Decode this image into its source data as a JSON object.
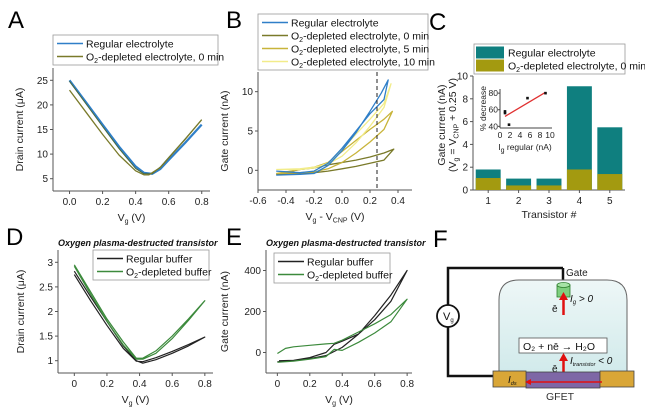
{
  "panels": {
    "A": "A",
    "B": "B",
    "C": "C",
    "D": "D",
    "E": "E",
    "F": "F"
  },
  "colors": {
    "regular_blue": "#2f7fc8",
    "o2_0min": "#7a7a2a",
    "o2_5min": "#c8b43a",
    "o2_10min": "#f2ec8a",
    "teal": "#0f7f7f",
    "olive": "#a39a10",
    "buffer_black": "#222222",
    "buffer_green": "#3c8a3c",
    "fit_red": "#e03030"
  },
  "chart_data": [
    {
      "id": "A",
      "type": "line",
      "title": "",
      "xlabel": "V_g (V)",
      "ylabel": "Drain current (μA)",
      "xlim": [
        -0.1,
        0.85
      ],
      "ylim": [
        2.5,
        27.5
      ],
      "xticks": [
        "0.0",
        "0.2",
        "0.4",
        "0.6",
        "0.8"
      ],
      "xtick_values": [
        0.0,
        0.2,
        0.4,
        0.6,
        0.8
      ],
      "yticks": [
        "5",
        "10",
        "15",
        "20",
        "25"
      ],
      "ytick_values": [
        5,
        10,
        15,
        20,
        25
      ],
      "legend": [
        "Regular electrolyte",
        "O₂-depleted electrolyte, 0 min"
      ],
      "legend_position": "top",
      "series": [
        {
          "name": "Regular electrolyte",
          "color": "#2f7fc8",
          "x": [
            0.0,
            0.1,
            0.2,
            0.3,
            0.4,
            0.45,
            0.5,
            0.55,
            0.6,
            0.7,
            0.8
          ],
          "y": [
            25.0,
            20.5,
            16.0,
            11.5,
            7.5,
            6.2,
            6.0,
            7.0,
            8.8,
            12.3,
            16.0
          ]
        },
        {
          "name": "O₂-depleted electrolyte, 0 min",
          "color": "#7a7a2a",
          "x": [
            0.0,
            0.1,
            0.2,
            0.3,
            0.4,
            0.45,
            0.48,
            0.55,
            0.6,
            0.7,
            0.8
          ],
          "y": [
            23.0,
            18.5,
            14.0,
            9.8,
            6.6,
            5.8,
            5.8,
            7.3,
            9.2,
            13.0,
            17.0
          ]
        },
        {
          "name": "Regular electrolyte (forward)",
          "color": "#4a6a40",
          "x": [
            0.0,
            0.1,
            0.2,
            0.3,
            0.4,
            0.45,
            0.5,
            0.55,
            0.6,
            0.7,
            0.8
          ],
          "y": [
            24.8,
            20.2,
            15.6,
            11.1,
            7.1,
            6.0,
            6.0,
            7.4,
            9.3,
            13.1,
            17.0
          ]
        }
      ]
    },
    {
      "id": "B",
      "type": "line",
      "title": "",
      "xlabel": "V_g - V_CNP (V)",
      "ylabel": "Gate current (nA)",
      "xlim": [
        -0.6,
        0.5
      ],
      "ylim": [
        -2.5,
        12.5
      ],
      "xticks": [
        "-0.6",
        "-0.4",
        "-0.2",
        "0.0",
        "0.2",
        "0.4"
      ],
      "xtick_values": [
        -0.6,
        -0.4,
        -0.2,
        0.0,
        0.2,
        0.4
      ],
      "yticks": [
        "0",
        "5",
        "10"
      ],
      "ytick_values": [
        0,
        5,
        10
      ],
      "vline": {
        "x": 0.25,
        "style": "dashed"
      },
      "legend": [
        "Regular electrolyte",
        "O₂-depleted electrolyte, 0 min",
        "O₂-depleted electrolyte, 5 min",
        "O₂-depleted electrolyte, 10 min"
      ],
      "legend_position": "top",
      "series": [
        {
          "name": "Regular electrolyte",
          "color": "#2f7fc8",
          "x": [
            -0.47,
            -0.3,
            -0.2,
            -0.1,
            0.0,
            0.1,
            0.2,
            0.28,
            0.33,
            0.3,
            0.2,
            0.1,
            0.0,
            -0.1,
            -0.2,
            -0.3,
            -0.47
          ],
          "y": [
            -0.6,
            -0.5,
            -0.4,
            0.6,
            2.5,
            4.8,
            7.5,
            9.8,
            11.5,
            9.0,
            7.2,
            5.0,
            2.8,
            0.9,
            -0.1,
            -0.3,
            -0.1
          ]
        },
        {
          "name": "O₂-depleted electrolyte, 0 min",
          "color": "#7a7a2a",
          "x": [
            -0.47,
            -0.3,
            -0.2,
            -0.1,
            0.0,
            0.1,
            0.2,
            0.3,
            0.37,
            0.3,
            0.2,
            0.1,
            0.0,
            -0.1,
            -0.2,
            -0.3,
            -0.47
          ],
          "y": [
            -0.5,
            -0.4,
            -0.3,
            -0.1,
            0.2,
            0.5,
            0.9,
            1.3,
            2.7,
            2.2,
            1.7,
            1.3,
            1.0,
            0.7,
            0.3,
            0.1,
            -0.5
          ]
        },
        {
          "name": "O₂-depleted electrolyte, 5 min",
          "color": "#c8b43a",
          "x": [
            -0.47,
            -0.3,
            -0.2,
            -0.1,
            0.0,
            0.1,
            0.2,
            0.3,
            0.36,
            0.3,
            0.2,
            0.1,
            0.0,
            -0.1,
            -0.2,
            -0.3,
            -0.47
          ],
          "y": [
            -0.4,
            -0.3,
            -0.2,
            0.2,
            1.0,
            2.2,
            3.6,
            5.2,
            7.5,
            6.5,
            5.2,
            3.8,
            2.4,
            1.0,
            0.4,
            0.1,
            -0.4
          ]
        },
        {
          "name": "O₂-depleted electrolyte, 10 min",
          "color": "#f2ec8a",
          "x": [
            -0.47,
            -0.3,
            -0.2,
            -0.1,
            0.0,
            0.1,
            0.2,
            0.3,
            0.35,
            0.3,
            0.2,
            0.1,
            0.0,
            -0.1,
            -0.2,
            -0.3,
            -0.47
          ],
          "y": [
            0.1,
            0.2,
            0.4,
            0.8,
            1.8,
            3.5,
            5.6,
            8.0,
            11.0,
            8.5,
            6.5,
            4.6,
            2.6,
            0.9,
            0.3,
            0.1,
            0.1
          ]
        }
      ]
    },
    {
      "id": "C",
      "type": "bar",
      "title": "",
      "xlabel": "Transistor #",
      "ylabel": "Gate current (nA)",
      "ylabel2": "(V_g = V_CNP + 0.25 V)",
      "categories": [
        "1",
        "2",
        "3",
        "4",
        "5"
      ],
      "ylim": [
        0,
        10
      ],
      "yticks": [
        "0",
        "2",
        "4",
        "6",
        "8",
        "10"
      ],
      "ytick_values": [
        0,
        2,
        4,
        6,
        8,
        10
      ],
      "legend": [
        "Regular electrolyte",
        "O₂-depleted electrolyte, 0 min"
      ],
      "legend_position": "top",
      "series": [
        {
          "name": "Regular electrolyte",
          "color": "#0f7f7f",
          "values": [
            1.8,
            1.0,
            1.0,
            9.1,
            5.5
          ]
        },
        {
          "name": "O₂-depleted electrolyte, 0 min",
          "color": "#a39a10",
          "values": [
            1.05,
            0.4,
            0.4,
            1.8,
            1.4
          ]
        }
      ],
      "inset": {
        "type": "scatter",
        "xlabel": "I_g regular (nA)",
        "ylabel": "% decrease",
        "xlim": [
          0,
          10
        ],
        "ylim": [
          38,
          85
        ],
        "xticks": [
          "0",
          "2",
          "4",
          "6",
          "8",
          "10"
        ],
        "xtick_values": [
          0,
          2,
          4,
          6,
          8,
          10
        ],
        "yticks": [
          "40",
          "60",
          "80"
        ],
        "ytick_values": [
          40,
          60,
          80
        ],
        "points": {
          "x": [
            1.0,
            1.0,
            1.8,
            5.5,
            9.1
          ],
          "y": [
            56,
            58,
            42,
            74,
            80
          ]
        },
        "fit": {
          "color": "#e03030",
          "x": [
            1.0,
            9.1
          ],
          "y": [
            52,
            81
          ]
        }
      }
    },
    {
      "id": "D",
      "type": "line",
      "title": "Oxygen plasma-destructed transistor",
      "xlabel": "V_g (V)",
      "ylabel": "Drain current (μA)",
      "xlim": [
        -0.1,
        0.85
      ],
      "ylim": [
        0.75,
        3.25
      ],
      "xticks": [
        "0",
        "0.2",
        "0.4",
        "0.6",
        "0.8"
      ],
      "xtick_values": [
        0,
        0.2,
        0.4,
        0.6,
        0.8
      ],
      "yticks": [
        "1",
        "1.5",
        "2",
        "2.5",
        "3"
      ],
      "ytick_values": [
        1,
        1.5,
        2,
        2.5,
        3
      ],
      "legend": [
        "Regular buffer",
        "O₂-depleted buffer"
      ],
      "legend_position": "top-right",
      "series": [
        {
          "name": "Regular buffer",
          "color": "#222222",
          "x": [
            0.0,
            0.1,
            0.2,
            0.3,
            0.38,
            0.42,
            0.5,
            0.6,
            0.7,
            0.8,
            0.7,
            0.6,
            0.5,
            0.42,
            0.38,
            0.3,
            0.2,
            0.1,
            0.0
          ],
          "y": [
            2.82,
            2.3,
            1.8,
            1.3,
            1.0,
            0.95,
            1.02,
            1.15,
            1.3,
            1.48,
            1.33,
            1.19,
            1.06,
            0.98,
            0.99,
            1.25,
            1.72,
            2.22,
            2.75
          ]
        },
        {
          "name": "O₂-depleted buffer",
          "color": "#3c8a3c",
          "x": [
            0.0,
            0.1,
            0.2,
            0.3,
            0.38,
            0.42,
            0.5,
            0.6,
            0.7,
            0.8,
            0.7,
            0.6,
            0.5,
            0.42,
            0.38,
            0.3,
            0.2,
            0.1,
            0.0
          ],
          "y": [
            2.95,
            2.4,
            1.85,
            1.38,
            1.05,
            1.05,
            1.2,
            1.5,
            1.85,
            2.22,
            1.82,
            1.45,
            1.15,
            1.03,
            1.03,
            1.32,
            1.8,
            2.35,
            2.92
          ]
        }
      ]
    },
    {
      "id": "E",
      "type": "line",
      "title": "Oxygen plasma-destructed transistor",
      "xlabel": "V_g (V)",
      "ylabel": "Gate current (nA)",
      "xlim": [
        -0.07,
        0.83
      ],
      "ylim": [
        -100,
        500
      ],
      "xticks": [
        "0",
        "0.2",
        "0.4",
        "0.6",
        "0.8"
      ],
      "xtick_values": [
        0,
        0.2,
        0.4,
        0.6,
        0.8
      ],
      "yticks": [
        "0",
        "200",
        "400"
      ],
      "ytick_values": [
        0,
        200,
        400
      ],
      "legend": [
        "Regular buffer",
        "O₂-depleted buffer"
      ],
      "legend_position": "top-left",
      "series": [
        {
          "name": "Regular buffer",
          "color": "#222222",
          "x": [
            0.0,
            0.1,
            0.2,
            0.3,
            0.35,
            0.4,
            0.5,
            0.6,
            0.7,
            0.8,
            0.7,
            0.6,
            0.5,
            0.4,
            0.35,
            0.3,
            0.2,
            0.1,
            0.01
          ],
          "y": [
            -45,
            -40,
            -30,
            -15,
            5,
            25,
            90,
            180,
            280,
            400,
            250,
            160,
            90,
            55,
            40,
            0,
            -25,
            -38,
            -40
          ]
        },
        {
          "name": "O₂-depleted buffer",
          "color": "#3c8a3c",
          "x": [
            0.0,
            0.05,
            0.1,
            0.2,
            0.3,
            0.35,
            0.4,
            0.5,
            0.6,
            0.7,
            0.8,
            0.7,
            0.6,
            0.5,
            0.4,
            0.35,
            0.3,
            0.2,
            0.1,
            0.0
          ],
          "y": [
            -5,
            20,
            28,
            35,
            42,
            45,
            60,
            100,
            140,
            185,
            260,
            150,
            95,
            50,
            10,
            15,
            -20,
            -32,
            -42,
            -48
          ]
        }
      ]
    }
  ],
  "diagram_F": {
    "gate_label": "Gate",
    "vg_label": "V",
    "vg_sub": "g",
    "electron": "ē",
    "ig_label": "I",
    "ig_sub": "g",
    "ig_rel": " > 0",
    "reaction": "O₂ + nē → H₂O",
    "itrans_label": "I",
    "itrans_sub": "transistor",
    "itrans_rel": " < 0",
    "ids_label": "I",
    "ids_sub": "ds",
    "gfet_label": "GFET"
  }
}
